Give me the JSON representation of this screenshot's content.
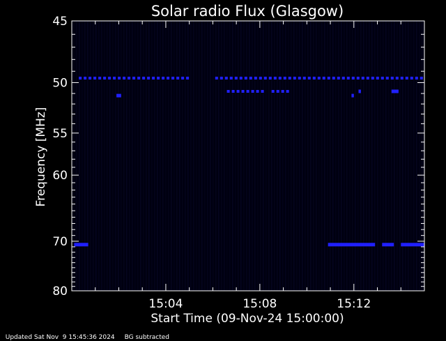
{
  "chart_data": {
    "type": "heatmap",
    "title": "Solar radio Flux (Glasgow)",
    "xlabel": "Start Time (09-Nov-24 15:00:00)",
    "ylabel": "Frequency [MHz]",
    "x_unit": "minutes after 15:00:00",
    "xlim": [
      0,
      15
    ],
    "ylim": [
      45,
      80
    ],
    "y_ticks": [
      45,
      50,
      55,
      60,
      70,
      80
    ],
    "y_tick_labels": [
      "45",
      "50",
      "55",
      "60",
      "70",
      "80"
    ],
    "x_ticks": [
      4,
      8,
      12
    ],
    "x_tick_labels": [
      "15:04",
      "15:08",
      "15:12"
    ],
    "colors": {
      "background": "#000010",
      "signal": "#2020ff",
      "axes": "#ffffff"
    },
    "bands": [
      {
        "frequency_mhz": 49.6,
        "segments": [
          [
            0.3,
            4.9
          ],
          [
            6.1,
            15.0
          ]
        ],
        "style": "dashed"
      },
      {
        "frequency_mhz": 50.8,
        "segments": [
          [
            6.6,
            8.2
          ],
          [
            8.5,
            9.2
          ]
        ],
        "style": "dashed"
      },
      {
        "frequency_mhz": 51.2,
        "segments": [
          [
            1.9,
            2.1
          ],
          [
            11.9,
            12.0
          ]
        ],
        "style": "solid"
      },
      {
        "frequency_mhz": 50.8,
        "segments": [
          [
            12.2,
            12.3
          ],
          [
            13.6,
            13.9
          ]
        ],
        "style": "solid"
      },
      {
        "frequency_mhz": 70.6,
        "segments": [
          [
            0.1,
            0.7
          ],
          [
            10.9,
            12.9
          ],
          [
            13.2,
            13.7
          ],
          [
            14.0,
            15.0
          ]
        ],
        "style": "solid"
      }
    ]
  },
  "footer": {
    "updated": "Updated Sat Nov  9 15:45:36 2024",
    "note": "BG subtracted"
  }
}
